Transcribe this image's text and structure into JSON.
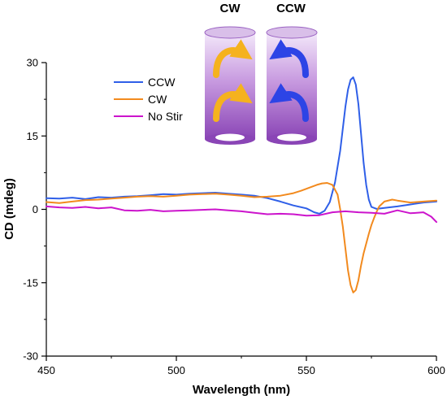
{
  "chart_data": {
    "type": "line",
    "xlabel": "Wavelength (nm)",
    "ylabel": "CD (mdeg)",
    "xlim": [
      450,
      600
    ],
    "ylim": [
      -30,
      30
    ],
    "xticks": [
      450,
      500,
      550,
      600
    ],
    "yticks": [
      30,
      15,
      0,
      -15,
      -30
    ],
    "xtick_labels": [
      "450",
      "500",
      "550",
      "600"
    ],
    "ytick_labels": [
      "30",
      "15",
      "0",
      "-15",
      "-30"
    ],
    "grid": false,
    "legend_position": "upper-left",
    "series": [
      {
        "name": "CCW",
        "color": "#2f5fe8",
        "x": [
          450,
          455,
          460,
          465,
          470,
          475,
          480,
          485,
          490,
          495,
          500,
          505,
          510,
          515,
          520,
          525,
          530,
          535,
          540,
          545,
          550,
          553,
          555,
          557,
          559,
          561,
          563,
          564,
          565,
          566,
          567,
          568,
          569,
          570,
          571,
          572,
          573,
          574,
          575,
          577,
          580,
          585,
          590,
          595,
          600
        ],
        "y": [
          2.3,
          2.2,
          2.4,
          2.1,
          2.5,
          2.4,
          2.6,
          2.7,
          2.9,
          3.1,
          3.0,
          3.2,
          3.3,
          3.4,
          3.2,
          3.0,
          2.8,
          2.3,
          1.6,
          0.8,
          0.2,
          -0.6,
          -0.9,
          -0.3,
          1.5,
          5.5,
          12.0,
          16.5,
          21.0,
          24.5,
          26.5,
          27.0,
          25.5,
          21.5,
          15.5,
          9.5,
          5.0,
          2.0,
          0.5,
          0.1,
          0.3,
          0.6,
          1.0,
          1.4,
          1.6
        ]
      },
      {
        "name": "CW",
        "color": "#f28a1e",
        "x": [
          450,
          455,
          460,
          465,
          470,
          475,
          480,
          485,
          490,
          495,
          500,
          505,
          510,
          515,
          520,
          525,
          530,
          535,
          540,
          545,
          548,
          550,
          552,
          554,
          556,
          558,
          560,
          562,
          563,
          564,
          565,
          566,
          567,
          568,
          569,
          570,
          571,
          572,
          573,
          574,
          575,
          576,
          577,
          578,
          580,
          583,
          585,
          590,
          595,
          600
        ],
        "y": [
          1.5,
          1.3,
          1.6,
          1.9,
          2.0,
          2.2,
          2.4,
          2.6,
          2.7,
          2.6,
          2.8,
          3.0,
          3.1,
          3.2,
          3.0,
          2.8,
          2.5,
          2.6,
          2.8,
          3.3,
          3.8,
          4.2,
          4.6,
          5.0,
          5.3,
          5.4,
          5.0,
          3.0,
          0.0,
          -3.5,
          -8.0,
          -12.5,
          -15.5,
          -17.0,
          -16.5,
          -14.5,
          -11.5,
          -9.0,
          -7.0,
          -5.0,
          -3.2,
          -1.8,
          -0.5,
          0.6,
          1.6,
          2.0,
          1.8,
          1.4,
          1.6,
          1.8
        ]
      },
      {
        "name": "No Stir",
        "color": "#cc14cc",
        "x": [
          450,
          455,
          460,
          465,
          470,
          475,
          480,
          485,
          490,
          495,
          500,
          505,
          510,
          515,
          520,
          525,
          530,
          535,
          540,
          545,
          550,
          555,
          560,
          565,
          570,
          575,
          580,
          585,
          590,
          595,
          598,
          600
        ],
        "y": [
          0.6,
          0.4,
          0.3,
          0.5,
          0.2,
          0.4,
          -0.2,
          -0.3,
          -0.1,
          -0.4,
          -0.3,
          -0.2,
          -0.1,
          0.0,
          -0.2,
          -0.4,
          -0.7,
          -1.0,
          -0.9,
          -1.0,
          -1.3,
          -1.2,
          -0.6,
          -0.4,
          -0.6,
          -0.7,
          -0.9,
          -0.2,
          -0.8,
          -0.6,
          -1.5,
          -2.6
        ]
      }
    ]
  },
  "inset": {
    "left_label": "CW",
    "right_label": "CCW",
    "left_arrow_color": "#f5b21e",
    "right_arrow_color": "#2d44e6",
    "cylinder_color": "#a86bd0"
  }
}
